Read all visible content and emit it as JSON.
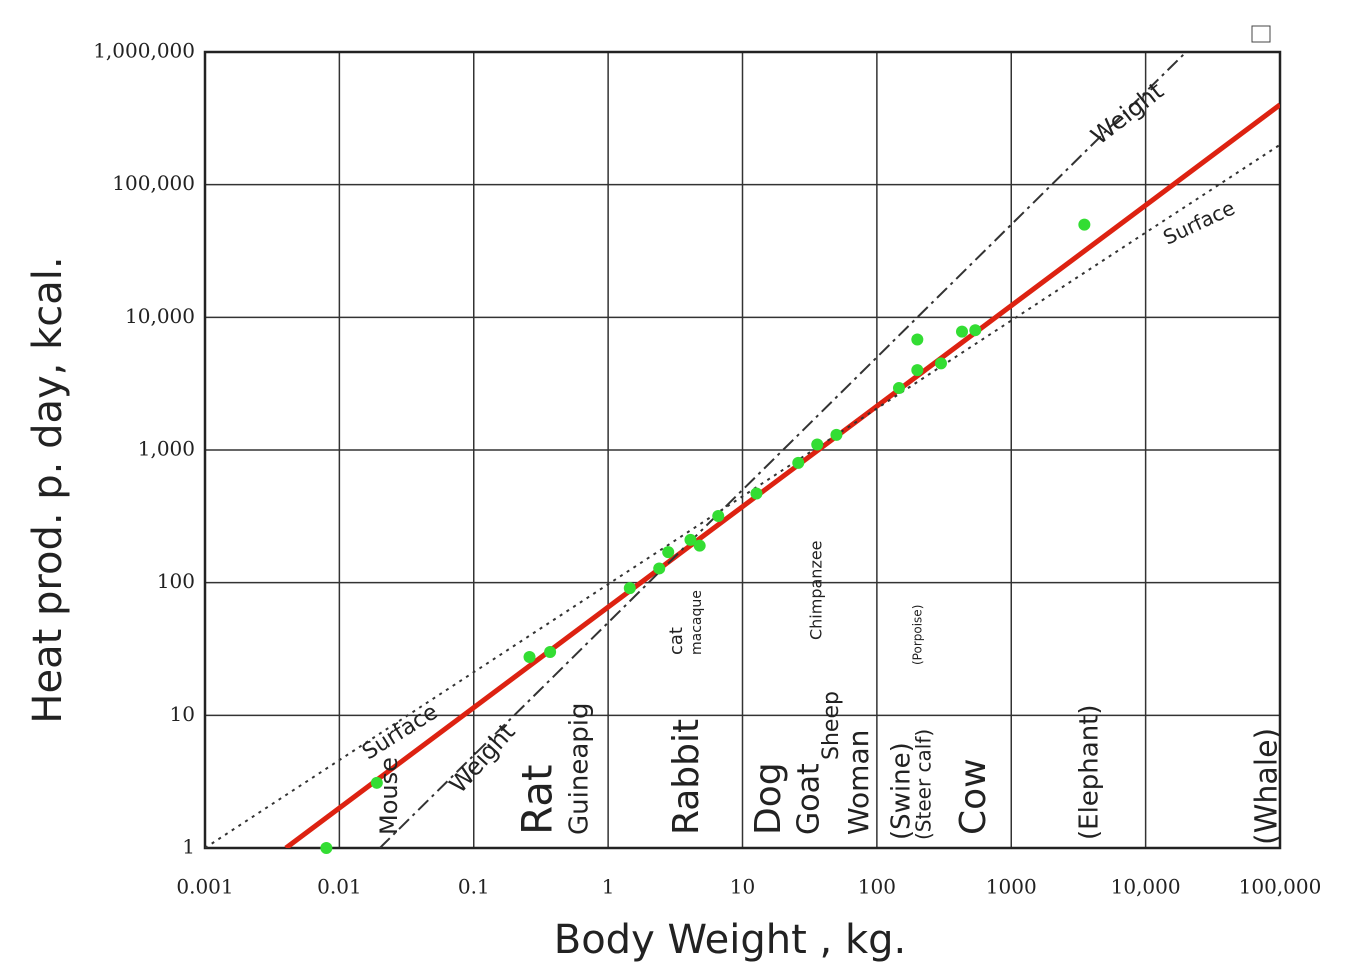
{
  "chart_data": {
    "type": "scatter",
    "x_label": "Body Weight , kg.",
    "y_label": "Heat prod. p. day, kcal.",
    "xscale": "log",
    "yscale": "log",
    "grid": true,
    "xlim": [
      0.001,
      100000
    ],
    "ylim": [
      1,
      1000000
    ],
    "xticks": [
      0.001,
      0.01,
      0.1,
      1,
      10,
      100,
      1000,
      {
        "value": 10000,
        "label": "10,000"
      },
      {
        "value": 100000,
        "label": "100,000"
      }
    ],
    "yticks": [
      1,
      10,
      100,
      {
        "value": 1000,
        "label": "1,000"
      },
      {
        "value": 10000,
        "label": "10,000"
      },
      {
        "value": 100000,
        "label": "100,000"
      },
      {
        "value": 1000000,
        "label": "1,000,000"
      }
    ],
    "points": {
      "color": "#33dd33",
      "x": [
        0.008,
        0.019,
        0.26,
        0.37,
        1.45,
        2.4,
        2.8,
        4.1,
        4.8,
        6.6,
        12.7,
        26,
        36,
        50,
        146,
        200,
        200,
        300,
        430,
        540,
        3500
      ],
      "y": [
        1,
        3.1,
        27.5,
        30,
        91,
        128,
        170,
        210,
        190,
        318,
        470,
        800,
        1100,
        1300,
        2930,
        6800,
        4000,
        4500,
        7800,
        8000,
        50000
      ]
    },
    "lines": [
      {
        "x": [
          0.004,
          100000
        ],
        "y": [
          1,
          400000
        ],
        "color": "#dd2211",
        "dash": "solid"
      },
      {
        "x": [
          0.02,
          20000
        ],
        "y": [
          1,
          1000000
        ],
        "color": "#333333",
        "dash": "dashdot"
      },
      {
        "x": [
          0.001,
          100000
        ],
        "y": [
          1,
          200000
        ],
        "color": "#333333",
        "dash": "dotted"
      }
    ],
    "annotations": [
      "Weight",
      "Surface",
      "Surface",
      "Weight",
      "Mouse",
      "Rat",
      "Guineapig",
      "Rabbit",
      "cat",
      "macaque",
      "Dog",
      "Goat",
      "Sheep",
      "Chimpanzee",
      "Woman",
      "(Swine)",
      "(Steer calf)",
      "(Porpoise)",
      "Cow",
      "(Elephant)",
      "(Whale)"
    ]
  }
}
